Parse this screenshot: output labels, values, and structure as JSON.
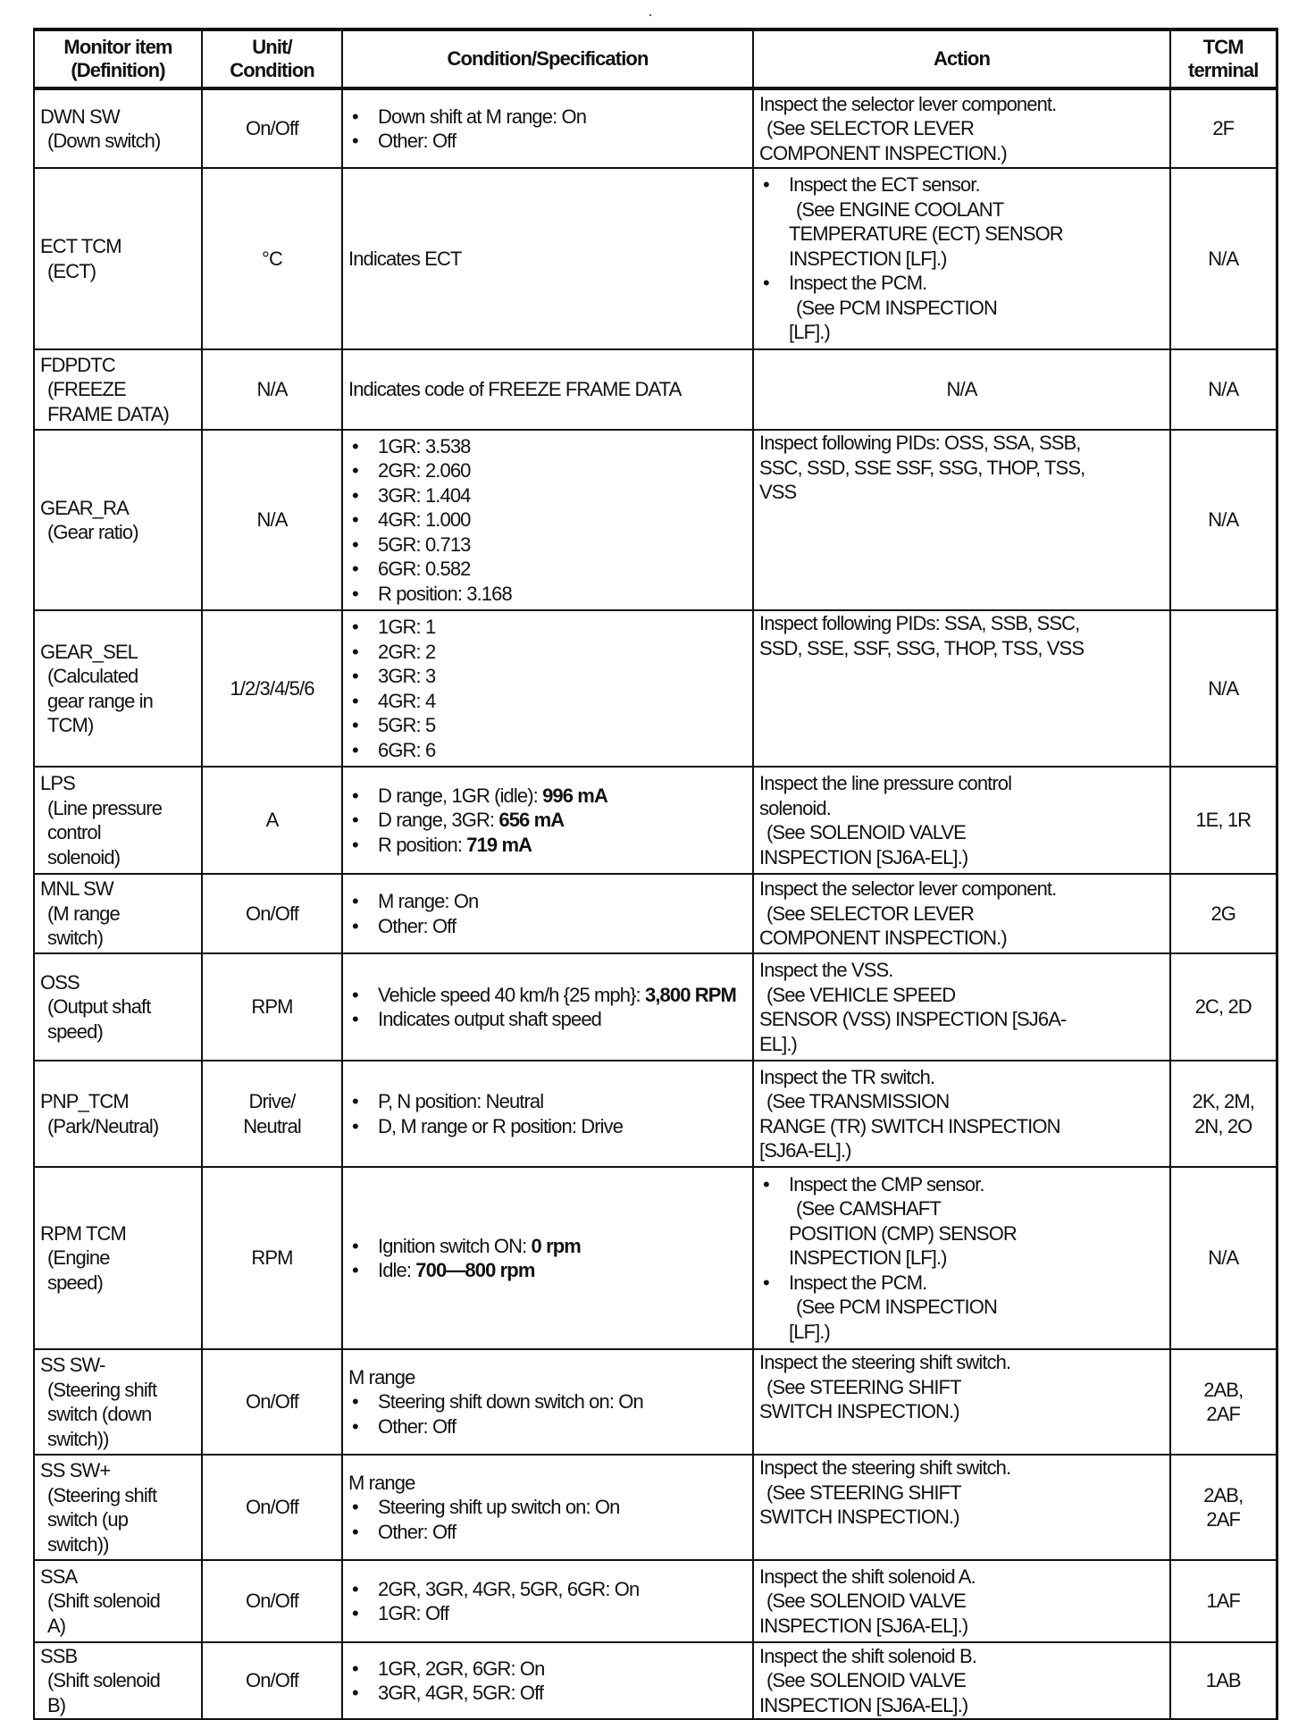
{
  "headers": [
    "Monitor item\n(Definition)",
    "Unit/\nCondition",
    "Condition/Specification",
    "Action",
    "TCM\nterminal"
  ],
  "rows": [
    {
      "item": [
        "DWN SW",
        "(Down switch)"
      ],
      "unit": "On/Off",
      "cond": {
        "intro": "",
        "bullets": [
          [
            {
              "t": "Down shift at M range: On"
            }
          ],
          [
            {
              "t": "Other: Off"
            }
          ]
        ]
      },
      "action": [
        {
          "bullet": false,
          "lines": [
            "Inspect the selector lever component.",
            "(See SELECTOR LEVER",
            "COMPONENT INSPECTION.)"
          ]
        }
      ],
      "term": "2F"
    },
    {
      "item": [
        "ECT TCM",
        "(ECT)"
      ],
      "unit": "°C",
      "cond": {
        "intro": "Indicates ECT",
        "bullets": []
      },
      "action": [
        {
          "bullet": true,
          "lines": [
            "Inspect the ECT sensor.",
            "(See ENGINE COOLANT",
            "TEMPERATURE (ECT) SENSOR",
            "INSPECTION [LF].)"
          ]
        },
        {
          "bullet": true,
          "lines": [
            "Inspect the PCM.",
            "(See PCM INSPECTION",
            "[LF].)"
          ]
        }
      ],
      "term": "N/A"
    },
    {
      "item": [
        "FDPDTC",
        "(FREEZE",
        "FRAME DATA)"
      ],
      "unit": "N/A",
      "cond": {
        "intro": "Indicates code of FREEZE FRAME DATA",
        "bullets": []
      },
      "action": [
        {
          "bullet": false,
          "center": true,
          "lines": [
            "N/A"
          ]
        }
      ],
      "term": "N/A"
    },
    {
      "item": [
        "GEAR_RA",
        "(Gear ratio)"
      ],
      "unit": "N/A",
      "cond": {
        "intro": "",
        "bullets": [
          [
            {
              "t": "1GR: 3.538"
            }
          ],
          [
            {
              "t": "2GR: 2.060"
            }
          ],
          [
            {
              "t": "3GR: 1.404"
            }
          ],
          [
            {
              "t": "4GR: 1.000"
            }
          ],
          [
            {
              "t": "5GR: 0.713"
            }
          ],
          [
            {
              "t": "6GR: 0.582"
            }
          ],
          [
            {
              "t": "R position: 3.168"
            }
          ]
        ]
      },
      "action": [
        {
          "bullet": false,
          "top": true,
          "lines": [
            "Inspect following PIDs: OSS, SSA, SSB,",
            "SSC, SSD, SSE SSF, SSG, THOP, TSS,",
            "VSS"
          ]
        }
      ],
      "term": "N/A"
    },
    {
      "item": [
        "GEAR_SEL",
        "(Calculated",
        "gear range in",
        "TCM)"
      ],
      "unit": "1/2/3/4/5/6",
      "cond": {
        "intro": "",
        "bullets": [
          [
            {
              "t": "1GR: 1"
            }
          ],
          [
            {
              "t": "2GR: 2"
            }
          ],
          [
            {
              "t": "3GR: 3"
            }
          ],
          [
            {
              "t": "4GR: 4"
            }
          ],
          [
            {
              "t": "5GR: 5"
            }
          ],
          [
            {
              "t": "6GR: 6"
            }
          ]
        ]
      },
      "action": [
        {
          "bullet": false,
          "top": true,
          "lines": [
            "Inspect following PIDs: SSA, SSB, SSC,",
            "SSD, SSE, SSF, SSG, THOP, TSS, VSS"
          ]
        }
      ],
      "term": "N/A"
    },
    {
      "item": [
        "LPS",
        "(Line pressure",
        "control",
        "solenoid)"
      ],
      "unit": "A",
      "cond": {
        "intro": "",
        "bullets": [
          [
            {
              "t": "D range, 1GR (idle): "
            },
            {
              "t": "996 mA",
              "b": true
            }
          ],
          [
            {
              "t": "D range, 3GR: "
            },
            {
              "t": "656 mA",
              "b": true
            }
          ],
          [
            {
              "t": "R position: "
            },
            {
              "t": "719 mA",
              "b": true
            }
          ]
        ]
      },
      "action": [
        {
          "bullet": false,
          "lines": [
            "Inspect the line pressure control",
            "solenoid.",
            "(See SOLENOID VALVE",
            "INSPECTION [SJ6A-EL].)"
          ]
        }
      ],
      "term": "1E, 1R"
    },
    {
      "item": [
        "MNL SW",
        "(M range",
        "switch)"
      ],
      "unit": "On/Off",
      "cond": {
        "intro": "",
        "bullets": [
          [
            {
              "t": "M range: On"
            }
          ],
          [
            {
              "t": "Other: Off"
            }
          ]
        ]
      },
      "action": [
        {
          "bullet": false,
          "lines": [
            "Inspect the selector lever component.",
            "(See SELECTOR LEVER",
            "COMPONENT INSPECTION.)"
          ]
        }
      ],
      "term": "2G"
    },
    {
      "item": [
        "OSS",
        "(Output shaft",
        "speed)"
      ],
      "unit": "RPM",
      "cond": {
        "intro": "",
        "bullets": [
          [
            {
              "t": "Vehicle speed 40 km/h {25 mph}: "
            },
            {
              "t": "3,800 RPM",
              "b": true
            }
          ],
          [
            {
              "t": "Indicates output shaft speed"
            }
          ]
        ]
      },
      "action": [
        {
          "bullet": false,
          "lines": [
            "Inspect the VSS.",
            "(See VEHICLE SPEED",
            "SENSOR (VSS) INSPECTION [SJ6A-",
            "EL].)"
          ]
        }
      ],
      "term": "2C, 2D"
    },
    {
      "item": [
        "PNP_TCM",
        "(Park/Neutral)"
      ],
      "unit": "Drive/\nNeutral",
      "cond": {
        "intro": "",
        "bullets": [
          [
            {
              "t": "P, N position: Neutral"
            }
          ],
          [
            {
              "t": "D, M range or R position: Drive"
            }
          ]
        ]
      },
      "action": [
        {
          "bullet": false,
          "lines": [
            "Inspect the TR switch.",
            "(See TRANSMISSION",
            "RANGE (TR) SWITCH INSPECTION",
            "[SJ6A-EL].)"
          ]
        }
      ],
      "term": "2K, 2M,\n2N, 2O"
    },
    {
      "item": [
        "RPM TCM",
        "(Engine",
        "speed)"
      ],
      "unit": "RPM",
      "cond": {
        "intro": "",
        "bullets": [
          [
            {
              "t": "Ignition switch ON: "
            },
            {
              "t": "0 rpm",
              "b": true
            }
          ],
          [
            {
              "t": "Idle: "
            },
            {
              "t": "700—800 rpm",
              "b": true
            }
          ]
        ]
      },
      "action": [
        {
          "bullet": true,
          "lines": [
            "Inspect the CMP sensor.",
            "(See CAMSHAFT",
            "POSITION (CMP) SENSOR",
            "INSPECTION [LF].)"
          ]
        },
        {
          "bullet": true,
          "lines": [
            "Inspect the PCM.",
            "(See PCM INSPECTION",
            "[LF].)"
          ]
        }
      ],
      "term": "N/A"
    },
    {
      "item": [
        "SS SW-",
        "(Steering shift",
        "switch (down",
        "switch))"
      ],
      "unit": "On/Off",
      "cond": {
        "intro": "M range",
        "bullets": [
          [
            {
              "t": "Steering shift down switch on: On"
            }
          ],
          [
            {
              "t": "Other: Off"
            }
          ]
        ]
      },
      "action": [
        {
          "bullet": false,
          "top": true,
          "lines": [
            "Inspect the steering shift switch.",
            "(See STEERING SHIFT",
            "SWITCH INSPECTION.)"
          ]
        }
      ],
      "term": "2AB,\n2AF"
    },
    {
      "item": [
        "SS SW+",
        "(Steering shift",
        "switch (up",
        "switch))"
      ],
      "unit": "On/Off",
      "cond": {
        "intro": "M range",
        "bullets": [
          [
            {
              "t": "Steering shift up switch on: On"
            }
          ],
          [
            {
              "t": "Other: Off"
            }
          ]
        ]
      },
      "action": [
        {
          "bullet": false,
          "top": true,
          "lines": [
            "Inspect the steering shift switch.",
            "(See STEERING SHIFT",
            "SWITCH INSPECTION.)"
          ]
        }
      ],
      "term": "2AB,\n2AF"
    },
    {
      "item": [
        "SSA",
        "(Shift solenoid",
        "A)"
      ],
      "unit": "On/Off",
      "cond": {
        "intro": "",
        "bullets": [
          [
            {
              "t": "2GR, 3GR, 4GR, 5GR, 6GR: On"
            }
          ],
          [
            {
              "t": "1GR: Off"
            }
          ]
        ]
      },
      "action": [
        {
          "bullet": false,
          "lines": [
            "Inspect the shift solenoid A.",
            "(See SOLENOID VALVE",
            "INSPECTION [SJ6A-EL].)"
          ]
        }
      ],
      "term": "1AF"
    },
    {
      "item": [
        "SSB",
        "(Shift solenoid",
        "B)"
      ],
      "unit": "On/Off",
      "cond": {
        "intro": "",
        "bullets": [
          [
            {
              "t": "1GR, 2GR, 6GR: On"
            }
          ],
          [
            {
              "t": "3GR, 4GR, 5GR: Off"
            }
          ]
        ]
      },
      "action": [
        {
          "bullet": false,
          "lines": [
            "Inspect the shift solenoid B.",
            "(See SOLENOID VALVE",
            "INSPECTION [SJ6A-EL].)"
          ]
        }
      ],
      "term": "1AB"
    }
  ]
}
